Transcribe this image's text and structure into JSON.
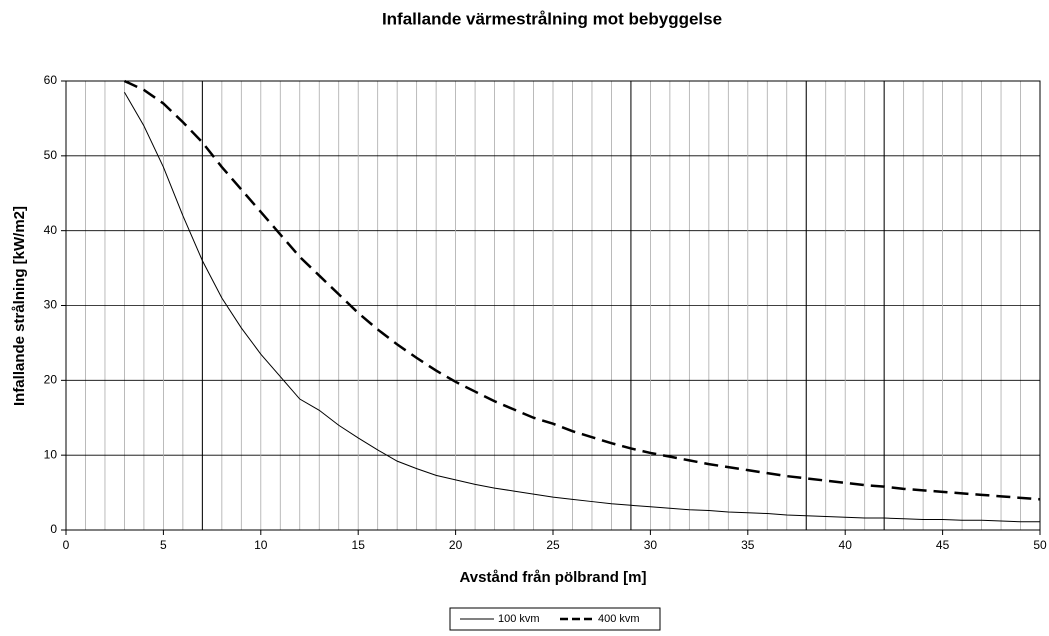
{
  "chart_data": {
    "type": "line",
    "title": "Infallande värmestrålning mot bebyggelse",
    "x_label": "Avstånd från pölbrand [m]",
    "y_label": "Infallande strålning [kW/m2]",
    "x": [
      3,
      4,
      5,
      6,
      7,
      8,
      9,
      10,
      11,
      12,
      13,
      14,
      15,
      16,
      17,
      18,
      19,
      20,
      21,
      22,
      23,
      24,
      25,
      26,
      27,
      28,
      29,
      30,
      31,
      32,
      33,
      34,
      35,
      36,
      37,
      38,
      39,
      40,
      41,
      42,
      43,
      44,
      45,
      46,
      47,
      48,
      49,
      50
    ],
    "series": [
      {
        "name": "100 kvm",
        "color": "#000000",
        "dash": "solid",
        "values": [
          58.5,
          54,
          48.5,
          42,
          36,
          31,
          27,
          23.5,
          20.5,
          17.5,
          16,
          14,
          12.3,
          10.7,
          9.2,
          8.2,
          7.3,
          6.7,
          6.1,
          5.6,
          5.2,
          4.8,
          4.4,
          4.1,
          3.8,
          3.5,
          3.3,
          3.1,
          2.9,
          2.7,
          2.6,
          2.4,
          2.3,
          2.2,
          2.0,
          1.9,
          1.8,
          1.7,
          1.6,
          1.6,
          1.5,
          1.4,
          1.4,
          1.3,
          1.3,
          1.2,
          1.1,
          1.1
        ]
      },
      {
        "name": "400 kvm",
        "color": "#000000",
        "dash": "dashed",
        "values": [
          60,
          58.8,
          57,
          54.5,
          51.8,
          48.5,
          45.5,
          42.5,
          39.5,
          36.5,
          34,
          31.5,
          29,
          26.8,
          24.8,
          23,
          21.3,
          19.8,
          18.5,
          17.2,
          16.1,
          15,
          14.2,
          13.2,
          12.4,
          11.6,
          10.9,
          10.3,
          9.8,
          9.3,
          8.8,
          8.4,
          8.0,
          7.6,
          7.2,
          6.9,
          6.6,
          6.3,
          6.0,
          5.8,
          5.5,
          5.3,
          5.1,
          4.9,
          4.7,
          4.5,
          4.3,
          4.1
        ]
      }
    ],
    "xlim": [
      0,
      50
    ],
    "ylim": [
      0,
      60
    ],
    "xticks": [
      0,
      5,
      10,
      15,
      20,
      25,
      30,
      35,
      40,
      45,
      50
    ],
    "yticks": [
      0,
      10,
      20,
      30,
      40,
      50,
      60
    ],
    "x_minor_grid": [
      1,
      2,
      3,
      4,
      6,
      7,
      8,
      9,
      11,
      12,
      13,
      14,
      16,
      17,
      18,
      19,
      21,
      22,
      23,
      24,
      26,
      27,
      28,
      29,
      31,
      32,
      33,
      34,
      36,
      37,
      38,
      39,
      41,
      42,
      43,
      44,
      46,
      47,
      48,
      49
    ],
    "reference_lines_x": [
      7,
      29,
      38,
      42
    ],
    "grid": true,
    "legend": "bottom"
  }
}
